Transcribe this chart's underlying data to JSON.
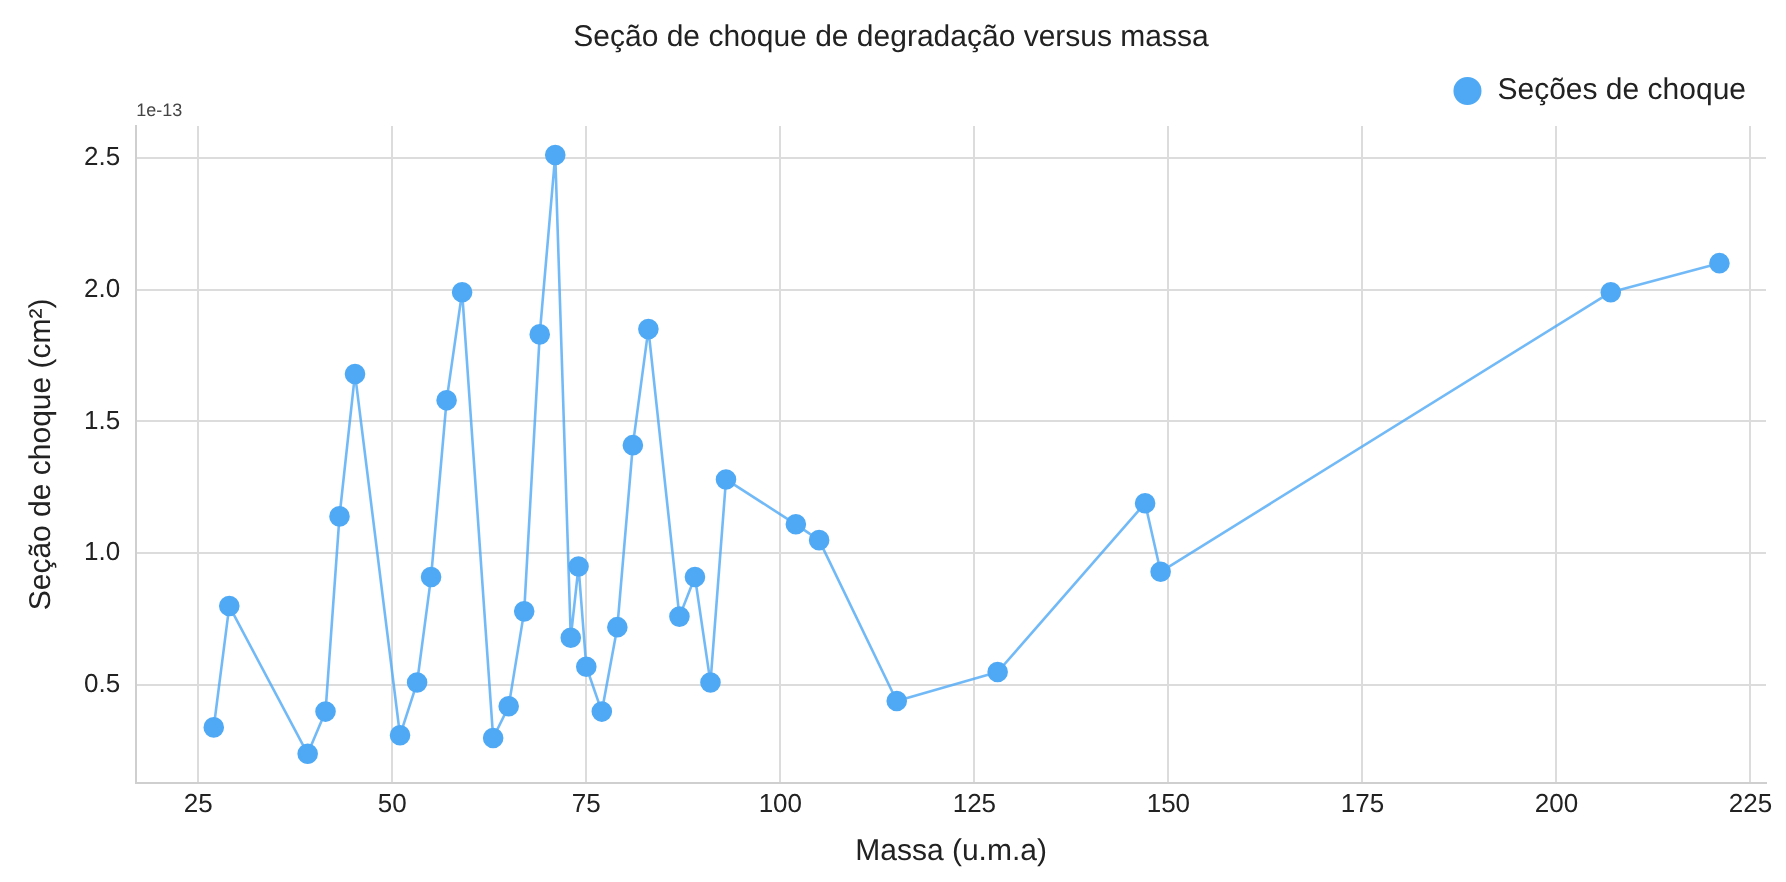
{
  "chart_data": {
    "type": "line",
    "title": "Seção de choque de degradação versus massa",
    "xlabel": "Massa (u.m.a)",
    "ylabel": "Seção de choque (cm²)",
    "annotations": [
      "1e-13"
    ],
    "xlim": [
      17,
      227
    ],
    "xticks": [
      25,
      50,
      75,
      100,
      125,
      150,
      175,
      200,
      225
    ],
    "ylim": [
      0.13,
      2.62
    ],
    "yticks": [
      0.5,
      {
        "value": 1,
        "label": "1.0"
      },
      1.5,
      {
        "value": 2,
        "label": "2.0"
      },
      2.5
    ],
    "grid": true,
    "legend": "top right",
    "marker": "circle",
    "line_style": "solid",
    "series": [
      {
        "name": "Seções de choque",
        "color": "#4fa9f5",
        "x": [
          27,
          29,
          39.1,
          41.4,
          43.2,
          45.2,
          51,
          53.2,
          55,
          57,
          59,
          63,
          65,
          67,
          69,
          71,
          73,
          74,
          75,
          77,
          79,
          81,
          83,
          87,
          89,
          91,
          93,
          102,
          105,
          115,
          128,
          147,
          149,
          207,
          221
        ],
        "values": [
          0.34,
          0.8,
          0.24,
          0.4,
          1.14,
          1.68,
          0.31,
          0.51,
          0.91,
          1.58,
          1.99,
          0.3,
          0.42,
          0.78,
          1.83,
          2.51,
          0.68,
          0.95,
          0.57,
          0.4,
          0.72,
          1.41,
          1.85,
          0.76,
          0.91,
          0.51,
          1.28,
          1.11,
          1.05,
          0.44,
          0.55,
          1.19,
          0.93,
          1.99,
          2.1
        ]
      }
    ]
  }
}
